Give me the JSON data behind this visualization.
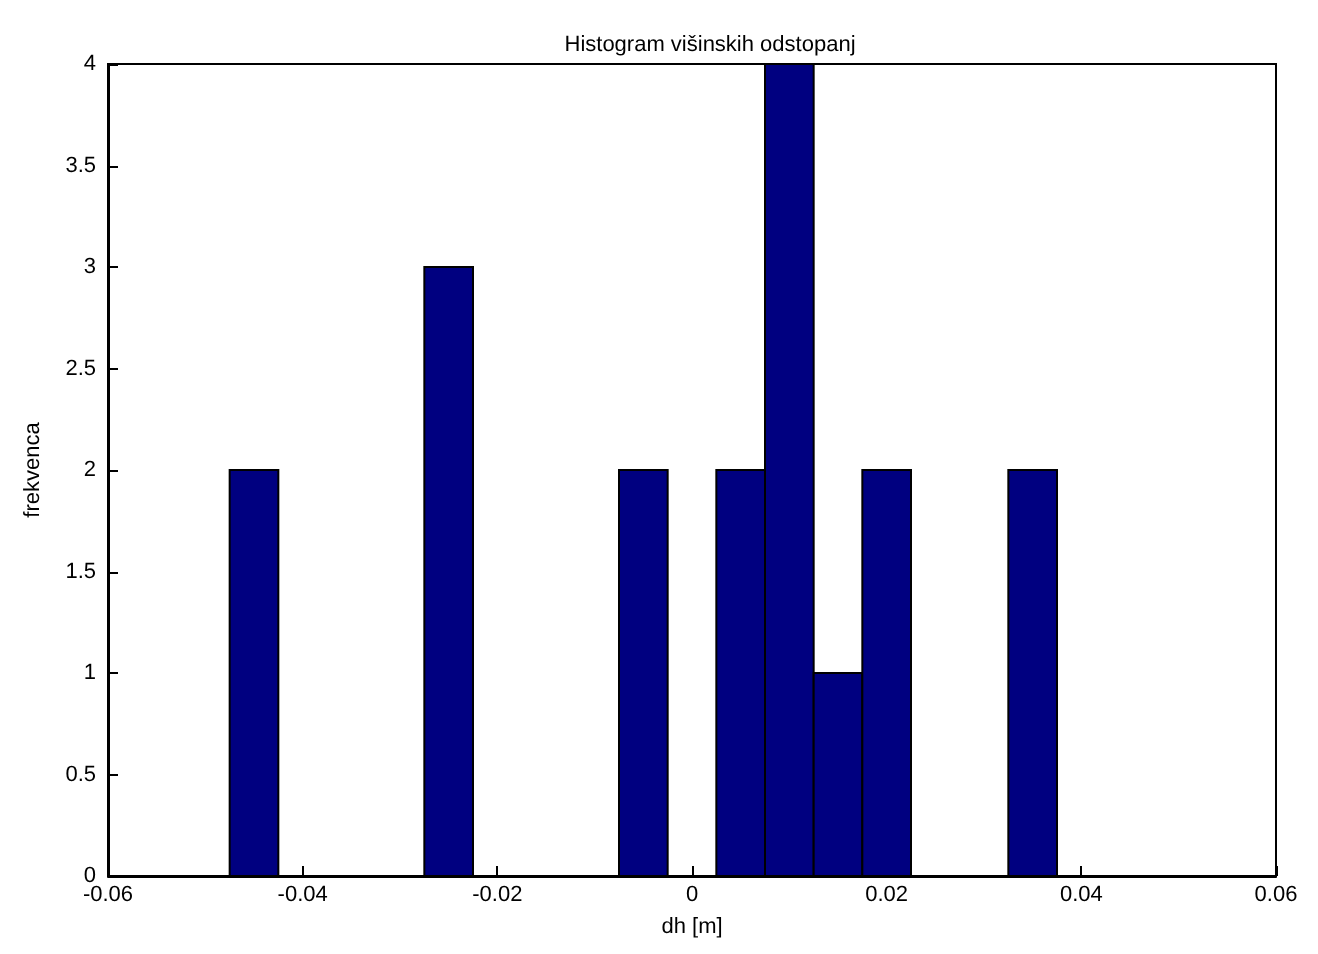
{
  "chart_data": {
    "type": "histogram",
    "title": "Histogram višinskih odstopanj",
    "xlabel": "dh [m]",
    "ylabel": "frekvenca",
    "bins": [
      -0.0475,
      -0.0425,
      -0.0375,
      -0.0325,
      -0.0275,
      -0.0225,
      -0.0175,
      -0.0125,
      -0.0075,
      -0.0025,
      0.0025,
      0.0075,
      0.0125,
      0.0175,
      0.0225,
      0.0275,
      0.0325,
      0.0375
    ],
    "values": [
      2,
      0,
      0,
      0,
      3,
      0,
      0,
      0,
      2,
      0,
      2,
      4,
      1,
      2,
      0,
      0,
      2
    ],
    "color": "#000080",
    "xlim": [
      -0.06,
      0.06
    ],
    "xticks": [
      -0.06,
      -0.04,
      -0.02,
      0,
      0.02,
      0.04,
      0.06
    ],
    "ylim": [
      0,
      4
    ],
    "yticks": [
      0,
      0.5,
      1,
      1.5,
      2,
      2.5,
      3,
      3.5,
      4
    ],
    "grid": false
  }
}
